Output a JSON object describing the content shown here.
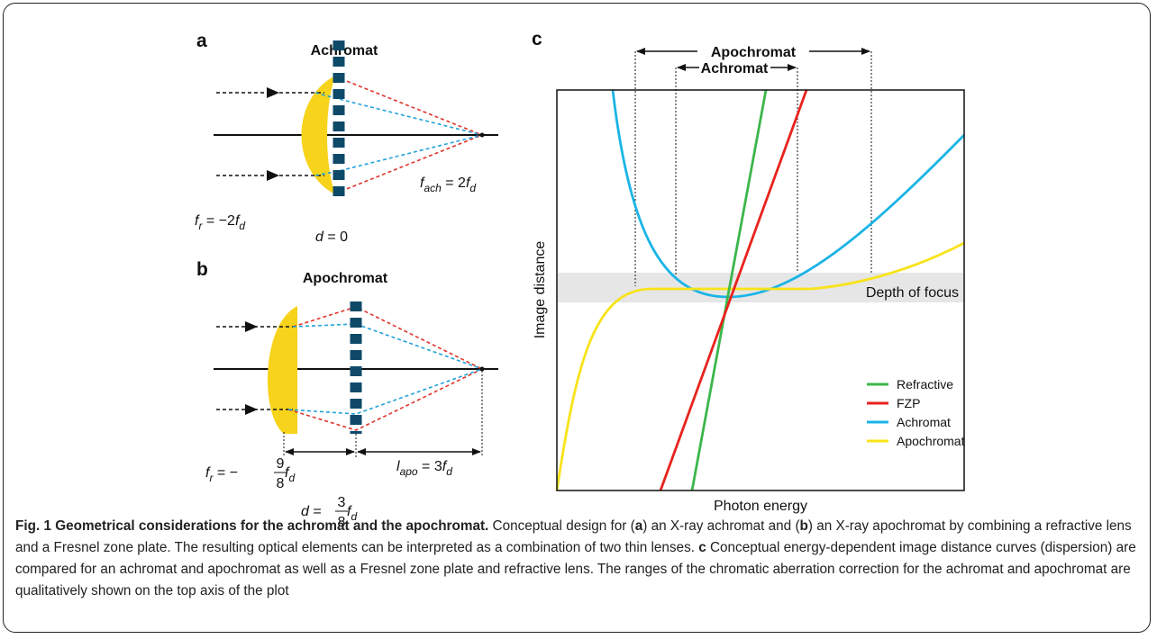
{
  "panel_a": {
    "letter": "a",
    "title": "Achromat",
    "fr": [
      "f",
      "r",
      " = −2",
      "f",
      "d"
    ],
    "d": [
      "d",
      " = 0"
    ],
    "fach": [
      "f",
      "ach",
      " = 2",
      "f",
      "d"
    ]
  },
  "panel_b": {
    "letter": "b",
    "title": "Apochromat",
    "fr": [
      "f",
      "r",
      " = −",
      "9",
      "8",
      " f",
      "d"
    ],
    "d": [
      "d",
      " = ",
      "3",
      "8",
      " f",
      "d"
    ],
    "lapo": [
      "l",
      "apo",
      " = 3",
      "f",
      "d"
    ]
  },
  "panel_c": {
    "letter": "c",
    "range_labels": [
      "Apochromat",
      "Achromat"
    ],
    "y_label": "Image distance",
    "x_label": "Photon energy",
    "band_label": "Depth of focus",
    "legend": [
      "Refractive",
      "FZP",
      "Achromat",
      "Apochromat"
    ]
  },
  "caption": [
    "Fig. 1 Geometrical considerations for the achromat and the apochromat.",
    " Conceptual design for (",
    "a",
    ") an X-ray achromat and (",
    "b",
    ") an X-ray apochromat by combining a refractive lens and a Fresnel zone plate. The resulting optical elements can be interpreted as a combination of two thin lenses. ",
    "c",
    " Conceptual energy-dependent image distance curves (dispersion) are compared for an achromat and apochromat as well as a Fresnel zone plate and refractive lens. The ranges of the chromatic aberration correction for the achromat and apochromat are qualitatively shown on the top axis of the plot"
  ]
}
